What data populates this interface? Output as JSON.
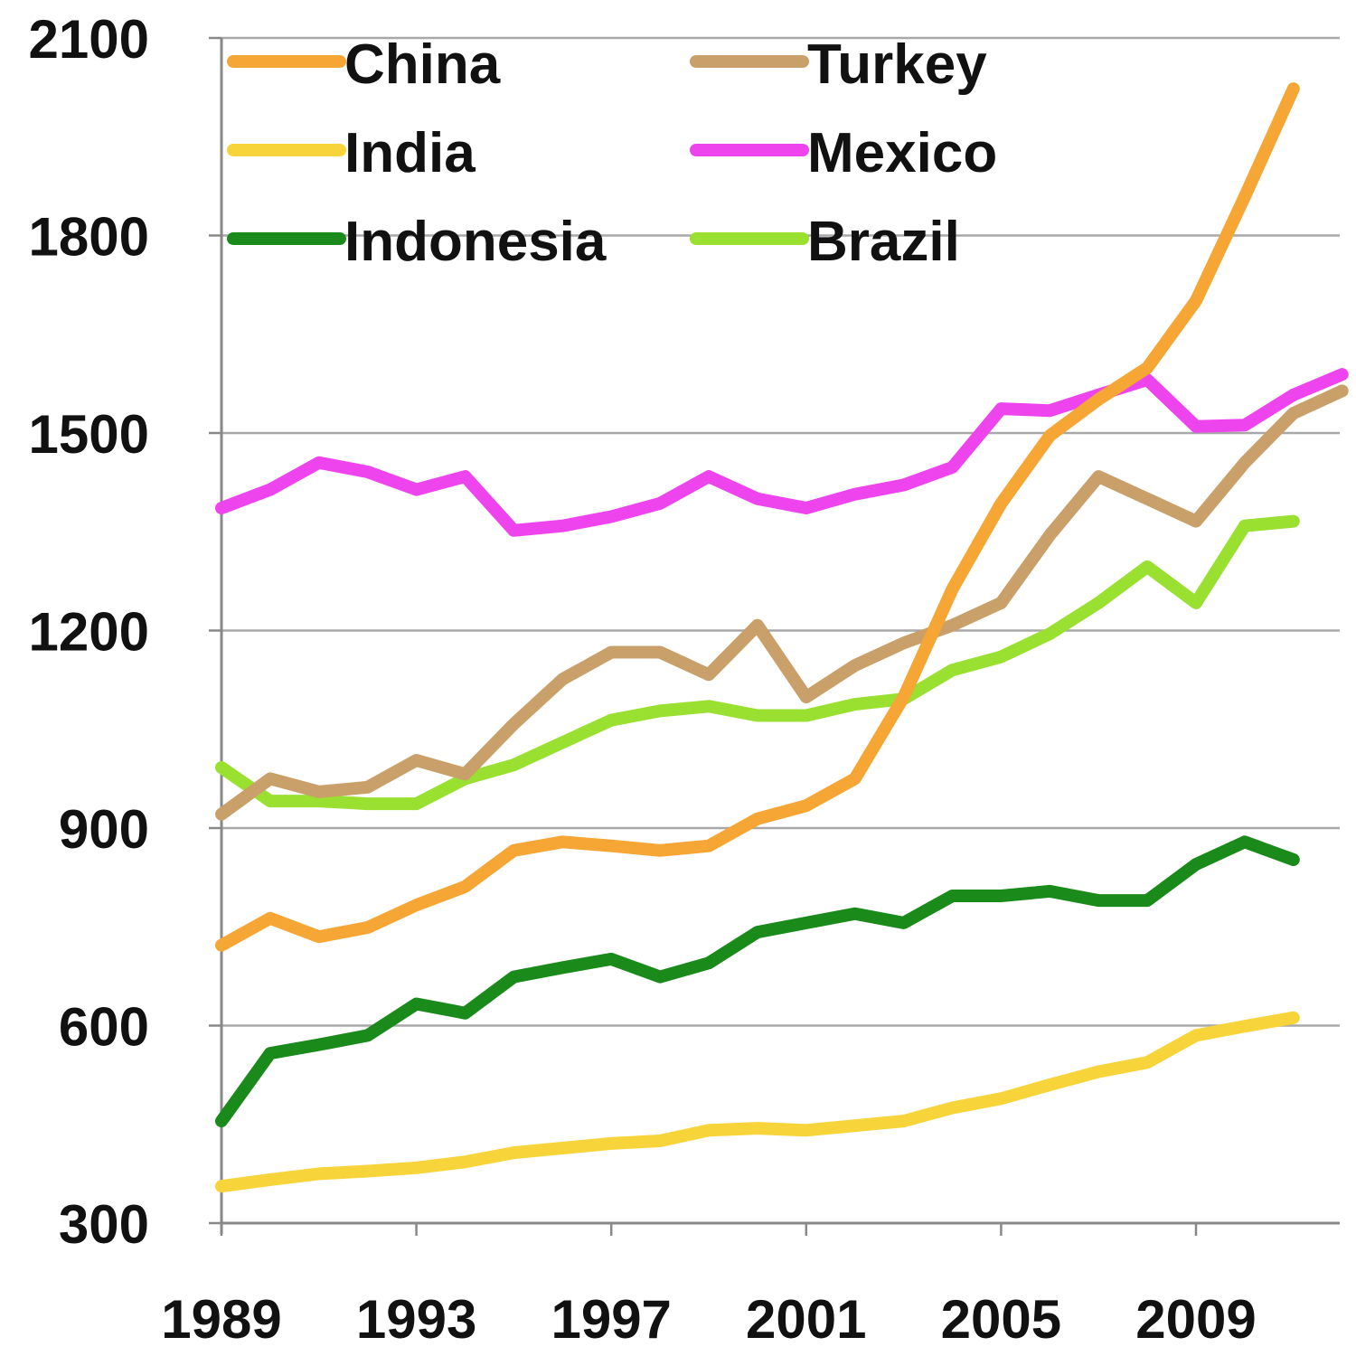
{
  "chart_data": {
    "type": "line",
    "title": "",
    "xlabel": "",
    "ylabel": "",
    "ylim": [
      300,
      2100
    ],
    "xlim": [
      1989,
      2012
    ],
    "yticks": [
      300,
      600,
      900,
      1200,
      1500,
      1800,
      2100
    ],
    "xticks": [
      1989,
      1993,
      1997,
      2001,
      2005,
      2009
    ],
    "grid": "horizontal",
    "legend_position": "top-left",
    "x": [
      1989,
      1990,
      1991,
      1992,
      1993,
      1994,
      1995,
      1996,
      1997,
      1998,
      1999,
      2000,
      2001,
      2002,
      2003,
      2004,
      2005,
      2006,
      2007,
      2008,
      2009,
      2010,
      2011,
      2012
    ],
    "series": [
      {
        "name": "China",
        "color": "#f5a634",
        "values": [
          722,
          763,
          735,
          749,
          783,
          811,
          866,
          879,
          873,
          866,
          873,
          914,
          934,
          975,
          1099,
          1263,
          1393,
          1496,
          1551,
          1599,
          1701,
          1859,
          2023,
          null
        ]
      },
      {
        "name": "Turkey",
        "color": "#c9a06a",
        "values": [
          921,
          975,
          955,
          962,
          1003,
          982,
          1058,
          1126,
          1167,
          1167,
          1133,
          1208,
          1099,
          1147,
          1181,
          1208,
          1242,
          1345,
          1434,
          1400,
          1366,
          1455,
          1530,
          1564
        ]
      },
      {
        "name": "India",
        "color": "#f7d43a",
        "values": [
          356,
          366,
          375,
          379,
          384,
          393,
          407,
          414,
          421,
          425,
          441,
          444,
          441,
          448,
          455,
          475,
          489,
          510,
          530,
          544,
          585,
          599,
          612,
          null
        ]
      },
      {
        "name": "Mexico",
        "color": "#ee44ee",
        "values": [
          1386,
          1414,
          1455,
          1441,
          1414,
          1434,
          1352,
          1359,
          1373,
          1393,
          1434,
          1400,
          1386,
          1407,
          1421,
          1448,
          1537,
          1534,
          1558,
          1581,
          1510,
          1512,
          1558,
          1589
        ]
      },
      {
        "name": "Indonesia",
        "color": "#1a8a1a",
        "values": [
          455,
          558,
          571,
          585,
          633,
          619,
          674,
          688,
          701,
          674,
          695,
          742,
          756,
          770,
          756,
          797,
          797,
          804,
          790,
          790,
          845,
          879,
          852,
          null
        ]
      },
      {
        "name": "Brazil",
        "color": "#99e030",
        "values": [
          992,
          941,
          941,
          937,
          937,
          975,
          996,
          1030,
          1064,
          1078,
          1085,
          1071,
          1071,
          1088,
          1096,
          1140,
          1160,
          1195,
          1242,
          1297,
          1242,
          1359,
          1366,
          null
        ]
      }
    ]
  }
}
